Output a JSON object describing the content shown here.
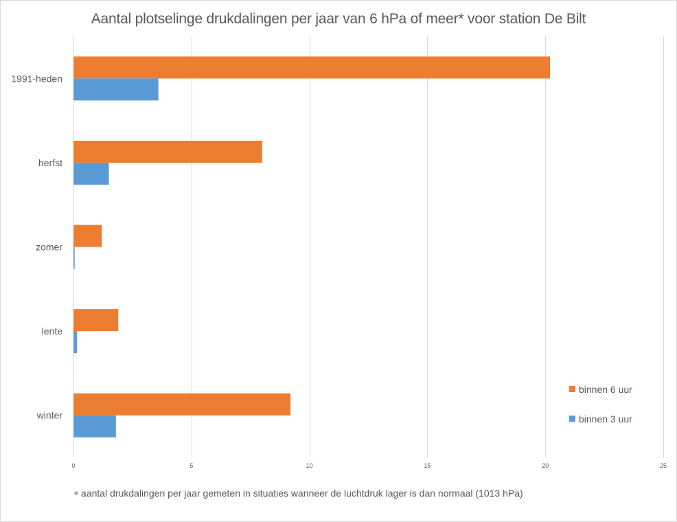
{
  "chart_data": {
    "type": "bar",
    "orientation": "horizontal",
    "title": "Aantal plotselinge drukdalingen per jaar van 6 hPa of meer* voor station De Bilt",
    "xlabel": "",
    "ylabel": "",
    "xlim": [
      0,
      25
    ],
    "xticks": [
      0,
      5,
      10,
      15,
      20,
      25
    ],
    "grid": true,
    "categories": [
      "1991-heden",
      "herfst",
      "zomer",
      "lente",
      "winter"
    ],
    "series": [
      {
        "name": "binnen 6 uur",
        "color": "#ED7D31",
        "values": [
          20.2,
          8.0,
          1.2,
          1.9,
          9.2
        ]
      },
      {
        "name": "binnen 3 uur",
        "color": "#5B9BD5",
        "values": [
          3.6,
          1.5,
          0.05,
          0.15,
          1.8
        ]
      }
    ],
    "legend_position": "right",
    "footnote": "aantal drukdalingen per jaar gemeten in situaties wanneer de luchtdruk lager is dan normaal (1013 hPa)"
  }
}
